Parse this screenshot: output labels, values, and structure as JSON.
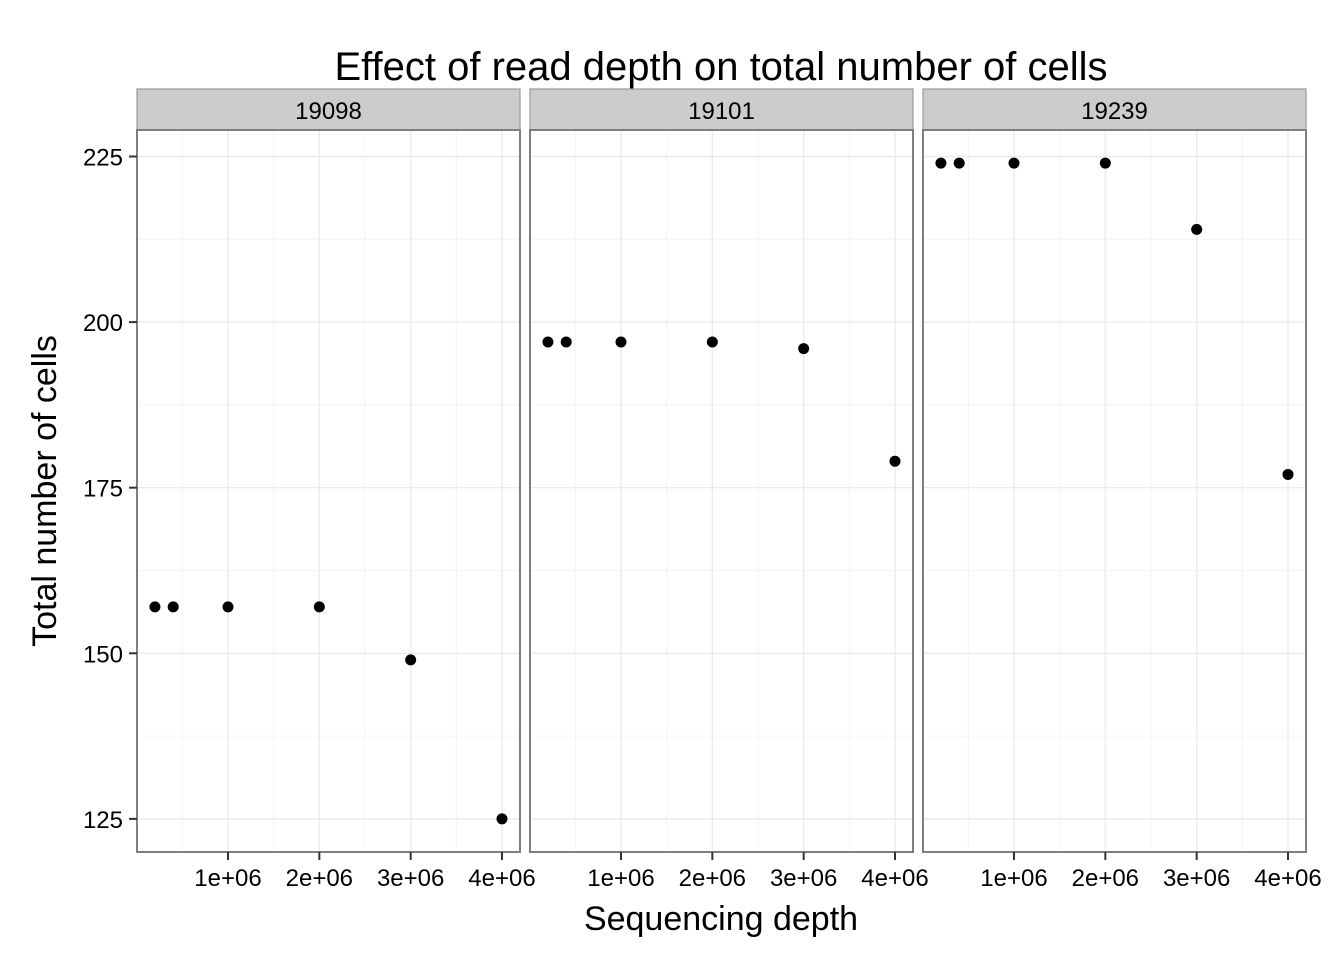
{
  "chart_data": {
    "type": "scatter",
    "title": "Effect of read depth on total number of cells",
    "xlabel": "Sequencing depth",
    "ylabel": "Total number of cells",
    "xlim": [
      0,
      4000000
    ],
    "ylim": [
      120,
      229
    ],
    "x_ticks": [
      1000000,
      2000000,
      3000000,
      4000000
    ],
    "x_tick_labels": [
      "1e+06",
      "2e+06",
      "3e+06",
      "4e+06"
    ],
    "y_ticks": [
      125,
      150,
      175,
      200,
      225
    ],
    "y_tick_labels": [
      "125",
      "150",
      "175",
      "200",
      "225"
    ],
    "grid": true,
    "point_color": "#000000",
    "facets": [
      {
        "label": "19098",
        "x": [
          200000,
          400000,
          1000000,
          2000000,
          3000000,
          4000000
        ],
        "y": [
          157,
          157,
          157,
          157,
          149,
          125
        ]
      },
      {
        "label": "19101",
        "x": [
          200000,
          400000,
          1000000,
          2000000,
          3000000,
          4000000
        ],
        "y": [
          197,
          197,
          197,
          197,
          196,
          179
        ]
      },
      {
        "label": "19239",
        "x": [
          200000,
          400000,
          1000000,
          2000000,
          3000000,
          4000000
        ],
        "y": [
          224,
          224,
          224,
          224,
          214,
          177
        ]
      }
    ]
  }
}
